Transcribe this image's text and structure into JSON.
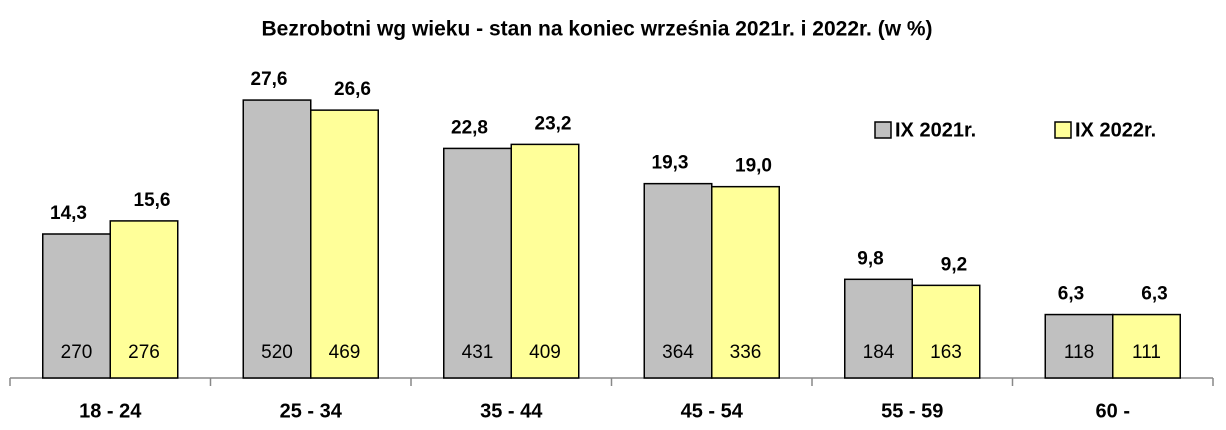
{
  "chart_data": {
    "type": "bar",
    "title": "Bezrobotni wg wieku - stan na koniec września 2021r. i 2022r. (w %)",
    "categories": [
      "18 - 24",
      "25 - 34",
      "35 - 44",
      "45 - 54",
      "55 - 59",
      "60 -"
    ],
    "series": [
      {
        "name": "IX 2021r.",
        "color": "#c0c0c0",
        "values": [
          14.3,
          27.6,
          22.8,
          19.3,
          9.8,
          6.3
        ],
        "value_labels": [
          "14,3",
          "27,6",
          "22,8",
          "19,3",
          "9,8",
          "6,3"
        ],
        "counts": [
          270,
          520,
          431,
          364,
          184,
          118
        ]
      },
      {
        "name": "IX 2022r.",
        "color": "#ffff99",
        "values": [
          15.6,
          26.6,
          23.2,
          19.0,
          9.2,
          6.3
        ],
        "value_labels": [
          "15,6",
          "26,6",
          "23,2",
          "19,0",
          "9,2",
          "6,3"
        ],
        "counts": [
          276,
          469,
          409,
          336,
          163,
          111
        ]
      }
    ],
    "legend": "top-right"
  }
}
